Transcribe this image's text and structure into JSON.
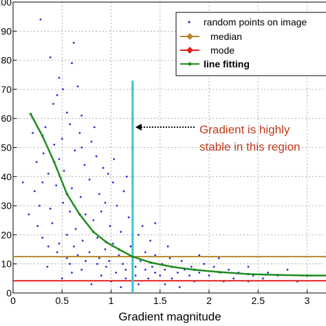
{
  "chart_data": {
    "type": "scatter",
    "title": "",
    "xlabel": "Gradient magnitude",
    "ylabel": "",
    "xlim": [
      0,
      3.2
    ],
    "ylim": [
      0,
      100
    ],
    "grid": true,
    "legend_position": "top-right",
    "x_ticks": [
      "0",
      "0.5",
      "1",
      "1.5",
      "2",
      "2.5",
      "3"
    ],
    "x_tick_values": [
      0,
      0.5,
      1,
      1.5,
      2,
      2.5,
      3
    ],
    "y_ticks": [
      "0",
      "10",
      "20",
      "30",
      "40",
      "50",
      "60",
      "70",
      "80",
      "90",
      "100"
    ],
    "y_tick_values": [
      0,
      10,
      20,
      30,
      40,
      50,
      60,
      70,
      80,
      90,
      100
    ],
    "series": [
      {
        "name": "random points on image",
        "kind": "points",
        "color": "#2b2bd6",
        "points": [
          [
            0.28,
            94
          ],
          [
            0.38,
            81
          ],
          [
            0.47,
            74
          ],
          [
            0.45,
            68
          ],
          [
            0.62,
            86
          ],
          [
            0.6,
            79
          ],
          [
            0.66,
            71
          ],
          [
            0.51,
            70
          ],
          [
            0.41,
            65
          ],
          [
            0.55,
            62
          ],
          [
            0.58,
            58
          ],
          [
            0.42,
            51
          ],
          [
            0.31,
            48
          ],
          [
            0.47,
            46
          ],
          [
            0.63,
            49
          ],
          [
            0.7,
            61
          ],
          [
            0.24,
            45
          ],
          [
            0.52,
            42
          ],
          [
            0.36,
            41
          ],
          [
            0.73,
            44
          ],
          [
            0.8,
            52
          ],
          [
            0.85,
            47
          ],
          [
            0.92,
            43
          ],
          [
            0.78,
            39
          ],
          [
            0.3,
            38
          ],
          [
            0.44,
            37
          ],
          [
            0.6,
            36
          ],
          [
            0.97,
            41
          ],
          [
            1.02,
            38
          ],
          [
            0.88,
            34
          ],
          [
            0.69,
            33
          ],
          [
            0.51,
            31
          ],
          [
            0.27,
            30
          ],
          [
            0.38,
            29
          ],
          [
            0.58,
            28
          ],
          [
            0.74,
            27
          ],
          [
            0.9,
            28
          ],
          [
            1.06,
            30
          ],
          [
            1.13,
            35
          ],
          [
            0.82,
            25
          ],
          [
            0.4,
            24
          ],
          [
            0.25,
            23
          ],
          [
            0.64,
            22
          ],
          [
            0.99,
            23
          ],
          [
            1.18,
            26
          ],
          [
            1.1,
            21
          ],
          [
            0.55,
            20
          ],
          [
            0.3,
            19
          ],
          [
            0.71,
            18
          ],
          [
            0.86,
            19
          ],
          [
            0.47,
            17
          ],
          [
            1.28,
            20
          ],
          [
            1.02,
            17
          ],
          [
            0.62,
            16
          ],
          [
            0.36,
            16
          ],
          [
            0.94,
            15
          ],
          [
            1.2,
            16
          ],
          [
            0.78,
            14
          ],
          [
            0.45,
            14
          ],
          [
            1.35,
            14
          ],
          [
            1.08,
            13
          ],
          [
            0.66,
            13
          ],
          [
            0.88,
            12
          ],
          [
            1.22,
            12
          ],
          [
            1.45,
            13
          ],
          [
            0.55,
            12
          ],
          [
            0.98,
            11
          ],
          [
            1.3,
            11
          ],
          [
            1.6,
            12
          ],
          [
            0.74,
            11
          ],
          [
            1.12,
            10
          ],
          [
            1.52,
            10
          ],
          [
            0.86,
            10
          ],
          [
            1.72,
            11
          ],
          [
            1.25,
            9
          ],
          [
            1.42,
            9
          ],
          [
            1.95,
            10
          ],
          [
            0.95,
            9
          ],
          [
            1.62,
            9
          ],
          [
            1.82,
            9
          ],
          [
            2.05,
            9
          ],
          [
            1.15,
            8
          ],
          [
            1.35,
            8
          ],
          [
            1.55,
            8
          ],
          [
            1.75,
            8
          ],
          [
            2.2,
            8
          ],
          [
            2.4,
            9
          ],
          [
            0.7,
            8
          ],
          [
            1.05,
            7
          ],
          [
            1.45,
            7
          ],
          [
            1.68,
            7
          ],
          [
            1.9,
            7
          ],
          [
            2.12,
            7
          ],
          [
            2.3,
            7
          ],
          [
            2.6,
            7
          ],
          [
            2.8,
            8
          ],
          [
            1.25,
            6
          ],
          [
            1.5,
            6
          ],
          [
            1.8,
            6
          ],
          [
            2.0,
            6
          ],
          [
            2.45,
            6
          ],
          [
            2.7,
            6
          ],
          [
            2.95,
            6
          ],
          [
            0.9,
            6
          ],
          [
            1.15,
            5
          ],
          [
            1.38,
            5
          ],
          [
            1.62,
            5
          ],
          [
            2.25,
            5
          ],
          [
            2.55,
            5
          ],
          [
            3.05,
            6
          ],
          [
            1.85,
            4
          ],
          [
            2.15,
            4
          ],
          [
            1.0,
            4
          ],
          [
            1.28,
            3
          ],
          [
            1.55,
            3
          ],
          [
            2.4,
            4
          ],
          [
            0.8,
            3
          ],
          [
            1.7,
            2
          ],
          [
            2.9,
            4
          ],
          [
            1.1,
            2
          ],
          [
            0.5,
            5
          ],
          [
            0.6,
            7
          ],
          [
            0.35,
            9
          ],
          [
            0.58,
            10
          ],
          [
            1.4,
            18
          ],
          [
            1.58,
            16
          ],
          [
            1.32,
            23
          ],
          [
            0.2,
            55
          ],
          [
            0.22,
            35
          ],
          [
            0.33,
            57
          ],
          [
            0.5,
            53
          ],
          [
            0.68,
            55
          ],
          [
            0.1,
            38
          ],
          [
            0.16,
            27
          ],
          [
            3.2,
            14
          ],
          [
            1.9,
            13
          ],
          [
            2.1,
            12
          ],
          [
            1.45,
            24
          ],
          [
            0.94,
            31
          ],
          [
            1.16,
            40
          ],
          [
            1.03,
            46
          ],
          [
            0.7,
            50
          ],
          [
            0.83,
            57
          ]
        ]
      },
      {
        "name": "median",
        "kind": "hline",
        "color": "#b8862b",
        "y": 12.5
      },
      {
        "name": "mode",
        "kind": "hline",
        "color": "#e0201b",
        "y": 4.2
      },
      {
        "name": "line fitting",
        "kind": "line",
        "color": "#1f8a1f",
        "points": [
          [
            0.18,
            61.5
          ],
          [
            0.3,
            54
          ],
          [
            0.42,
            45
          ],
          [
            0.55,
            34
          ],
          [
            0.68,
            27
          ],
          [
            0.82,
            21
          ],
          [
            0.95,
            17.5
          ],
          [
            1.08,
            15
          ],
          [
            1.22,
            12.5
          ],
          [
            1.4,
            10.5
          ],
          [
            1.62,
            9
          ],
          [
            1.85,
            8
          ],
          [
            2.1,
            7.2
          ],
          [
            2.4,
            6.5
          ],
          [
            2.7,
            6.2
          ],
          [
            3.0,
            6
          ],
          [
            3.25,
            6
          ]
        ]
      }
    ],
    "reference_line": {
      "kind": "vline",
      "color": "#39c4d4",
      "x": 1.22,
      "y_range": [
        0,
        73
      ]
    },
    "annotation": {
      "text_line1": "Gradient is highly",
      "text_line2": "stable in this region",
      "color": "#c0391b",
      "arrow_to": [
        1.22,
        57
      ]
    }
  }
}
